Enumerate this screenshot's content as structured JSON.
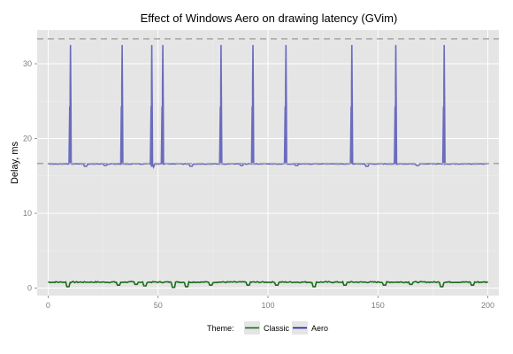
{
  "chart_data": {
    "type": "line",
    "title": "Effect of Windows Aero on drawing latency (GVim)",
    "xlabel": "",
    "ylabel": "Delay, ms",
    "xlim": [
      -5,
      205
    ],
    "ylim": [
      -1,
      34.5
    ],
    "x_ticks": [
      0,
      50,
      100,
      150,
      200
    ],
    "y_ticks": [
      0,
      10,
      20,
      30
    ],
    "grid": true,
    "legend_position": "bottom",
    "legend_title": "Theme:",
    "reference_lines": [
      16.67,
      33.33
    ],
    "colors": {
      "Classic": "#1a6b1a",
      "Aero": "#6b6bbf",
      "AeroLegend": "#1a1a9e",
      "panel": "#e5e5e5",
      "refline": "#a6a6a6"
    },
    "series": [
      {
        "name": "Classic",
        "baseline": 0.8,
        "noise": 0.15,
        "dips": [
          [
            9,
            0.2
          ],
          [
            32,
            0.4
          ],
          [
            40,
            0.5
          ],
          [
            44,
            0.3
          ],
          [
            57,
            0.1
          ],
          [
            63,
            0.2
          ],
          [
            74,
            0.4
          ],
          [
            91,
            0.4
          ],
          [
            104,
            0.4
          ],
          [
            121,
            0.2
          ],
          [
            135,
            0.4
          ],
          [
            153,
            0.4
          ],
          [
            165,
            0.5
          ],
          [
            179,
            0.2
          ],
          [
            193,
            0.4
          ]
        ]
      },
      {
        "name": "Aero",
        "baseline": 16.6,
        "noise": 0.08,
        "spikes": [
          10,
          33.5,
          47,
          52,
          78.5,
          93,
          108,
          138,
          158,
          180
        ],
        "spike_peak": 32.5,
        "dips": [
          [
            17,
            16.3
          ],
          [
            26,
            16.4
          ],
          [
            47.5,
            16.2
          ],
          [
            65,
            16.3
          ],
          [
            88,
            16.4
          ],
          [
            113,
            16.4
          ],
          [
            145,
            16.3
          ],
          [
            168,
            16.4
          ]
        ]
      }
    ]
  }
}
